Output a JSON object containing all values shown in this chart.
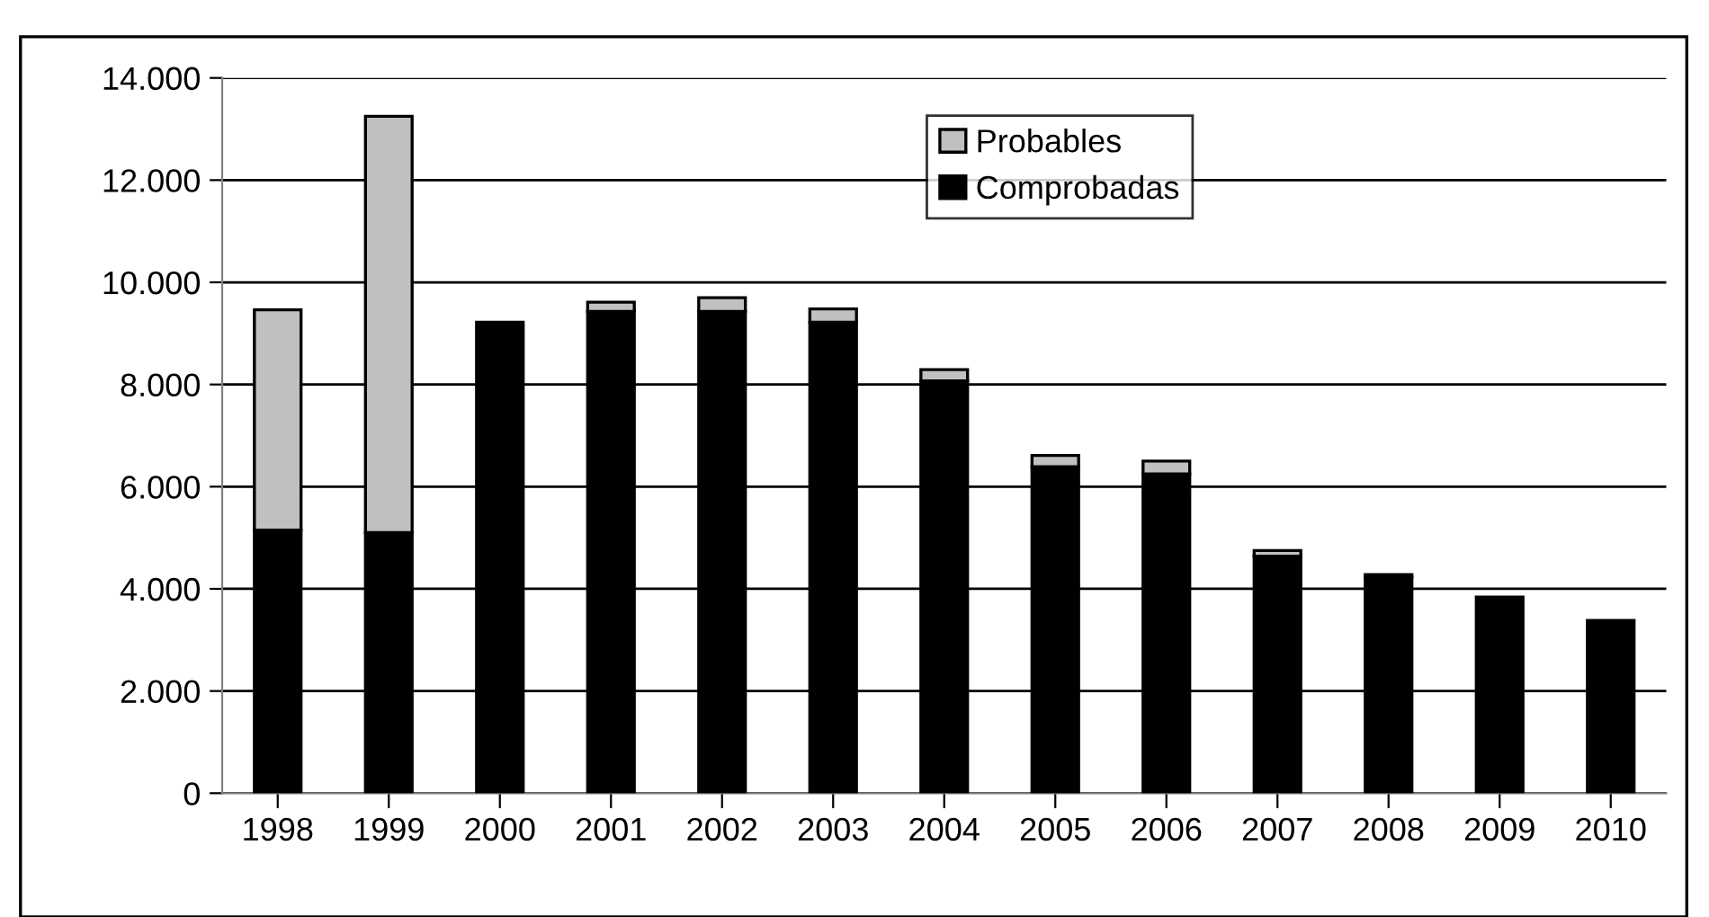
{
  "chart_data": {
    "type": "bar",
    "stacked": true,
    "categories": [
      "1998",
      "1999",
      "2000",
      "2001",
      "2002",
      "2003",
      "2004",
      "2005",
      "2006",
      "2007",
      "2008",
      "2009",
      "2010"
    ],
    "series": [
      {
        "name": "Comprobadas",
        "color": "#000000",
        "values": [
          5150,
          5100,
          9220,
          9430,
          9430,
          9220,
          8070,
          6390,
          6250,
          4640,
          4230,
          3840,
          3380
        ]
      },
      {
        "name": "Probables",
        "color": "#c0c0c0",
        "values": [
          4310,
          8150,
          null,
          180,
          270,
          260,
          220,
          220,
          250,
          110,
          50,
          null,
          null
        ]
      }
    ],
    "ylim": [
      0,
      14000
    ],
    "yticks": [
      0,
      {
        "value": 2000,
        "label": "2.000"
      },
      {
        "value": 4000,
        "label": "4.000"
      },
      {
        "value": 6000,
        "label": "6.000"
      },
      {
        "value": 8000,
        "label": "8.000"
      },
      {
        "value": 10000,
        "label": "10.000"
      },
      {
        "value": 12000,
        "label": "12.000"
      },
      {
        "value": 14000,
        "label": "14.000"
      }
    ],
    "grid": "y",
    "legend": "top"
  }
}
